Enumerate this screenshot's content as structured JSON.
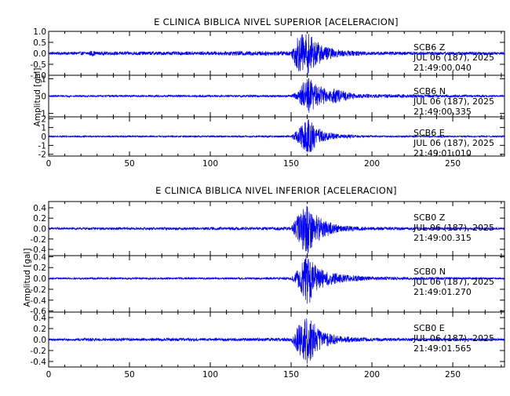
{
  "chart_data": [
    {
      "type": "line",
      "title": "E CLINICA BIBLICA NIVEL SUPERIOR [ACELERACION]",
      "ylabel": "Amplitud  [gal]",
      "xlim": [
        0,
        282
      ],
      "x_ticks": [
        "0",
        "50",
        "100",
        "150",
        "200",
        "250"
      ],
      "color": "#0000ff",
      "panels": [
        {
          "station": "SCB6",
          "component": "Z",
          "date": "JUL 06 (187), 2025",
          "time": "21:49:00.040",
          "ylim": [
            -1.0,
            1.0
          ],
          "y_ticks": [
            "1.0",
            "0.5",
            "0.0",
            "-0.5",
            "-1.0"
          ],
          "envelope": [
            [
              0,
              0.06
            ],
            [
              25,
              0.08
            ],
            [
              27,
              0.15
            ],
            [
              29,
              0.08
            ],
            [
              110,
              0.08
            ],
            [
              112,
              0.1
            ],
            [
              150,
              0.1
            ],
            [
              153,
              0.7
            ],
            [
              156,
              0.9
            ],
            [
              158,
              0.85
            ],
            [
              160,
              1.0
            ],
            [
              165,
              0.6
            ],
            [
              170,
              0.35
            ],
            [
              180,
              0.15
            ],
            [
              200,
              0.08
            ],
            [
              282,
              0.06
            ]
          ]
        },
        {
          "station": "SCB6",
          "component": "N",
          "date": "JUL 06 (187), 2025",
          "time": "21:49:00.335",
          "ylim": [
            -1.2,
            1.2
          ],
          "y_ticks": [
            "1",
            "0",
            "-1"
          ],
          "envelope": [
            [
              0,
              0.05
            ],
            [
              150,
              0.06
            ],
            [
              155,
              0.35
            ],
            [
              158,
              0.9
            ],
            [
              161,
              1.1
            ],
            [
              165,
              0.75
            ],
            [
              170,
              0.5
            ],
            [
              173,
              0.25
            ],
            [
              176,
              0.45
            ],
            [
              180,
              0.35
            ],
            [
              190,
              0.12
            ],
            [
              282,
              0.05
            ]
          ]
        },
        {
          "station": "SCB6",
          "component": "E",
          "date": "JUL 06 (187), 2025",
          "time": "21:49:01.010",
          "ylim": [
            -2.2,
            2.2
          ],
          "y_ticks": [
            "2",
            "1",
            "0",
            "-1",
            "-2"
          ],
          "envelope": [
            [
              0,
              0.08
            ],
            [
              150,
              0.1
            ],
            [
              154,
              0.7
            ],
            [
              158,
              1.6
            ],
            [
              161,
              2.0
            ],
            [
              165,
              1.2
            ],
            [
              170,
              0.6
            ],
            [
              180,
              0.25
            ],
            [
              200,
              0.1
            ],
            [
              282,
              0.08
            ]
          ]
        }
      ]
    },
    {
      "type": "line",
      "title": "E CLINICA BIBLICA NIVEL INFERIOR [ACELERACION]",
      "ylabel": "Amplitud  [gal]",
      "xlim": [
        0,
        282
      ],
      "x_ticks": [
        "0",
        "50",
        "100",
        "150",
        "200",
        "250"
      ],
      "color": "#0000ff",
      "panels": [
        {
          "station": "SCB0",
          "component": "Z",
          "date": "JUL 06 (187), 2025",
          "time": "21:49:00.315",
          "ylim": [
            -0.52,
            0.52
          ],
          "y_ticks": [
            "0.4",
            "0.2",
            "0.0",
            "-0.2",
            "-0.4"
          ],
          "envelope": [
            [
              0,
              0.02
            ],
            [
              150,
              0.03
            ],
            [
              153,
              0.2
            ],
            [
              157,
              0.4
            ],
            [
              160,
              0.5
            ],
            [
              164,
              0.32
            ],
            [
              170,
              0.18
            ],
            [
              180,
              0.06
            ],
            [
              200,
              0.03
            ],
            [
              282,
              0.02
            ]
          ]
        },
        {
          "station": "SCB0",
          "component": "N",
          "date": "JUL 06 (187), 2025",
          "time": "21:49:01.270",
          "ylim": [
            -0.62,
            0.42
          ],
          "y_ticks": [
            "0.4",
            "0.2",
            "0.0",
            "-0.2",
            "-0.4",
            "-0.6"
          ],
          "envelope": [
            [
              0,
              0.015
            ],
            [
              150,
              0.02
            ],
            [
              154,
              0.15
            ],
            [
              158,
              0.35
            ],
            [
              160,
              0.55
            ],
            [
              164,
              0.28
            ],
            [
              170,
              0.16
            ],
            [
              180,
              0.08
            ],
            [
              200,
              0.03
            ],
            [
              282,
              0.015
            ]
          ]
        },
        {
          "station": "SCB0",
          "component": "E",
          "date": "JUL 06 (187), 2025",
          "time": "21:49:01.565",
          "ylim": [
            -0.5,
            0.5
          ],
          "y_ticks": [
            "0.4",
            "0.2",
            "0.0",
            "-0.2",
            "-0.4"
          ],
          "envelope": [
            [
              0,
              0.02
            ],
            [
              25,
              0.025
            ],
            [
              27,
              0.04
            ],
            [
              29,
              0.025
            ],
            [
              150,
              0.03
            ],
            [
              154,
              0.25
            ],
            [
              158,
              0.4
            ],
            [
              160,
              0.48
            ],
            [
              164,
              0.3
            ],
            [
              170,
              0.15
            ],
            [
              180,
              0.06
            ],
            [
              200,
              0.03
            ],
            [
              282,
              0.02
            ]
          ]
        }
      ]
    }
  ]
}
